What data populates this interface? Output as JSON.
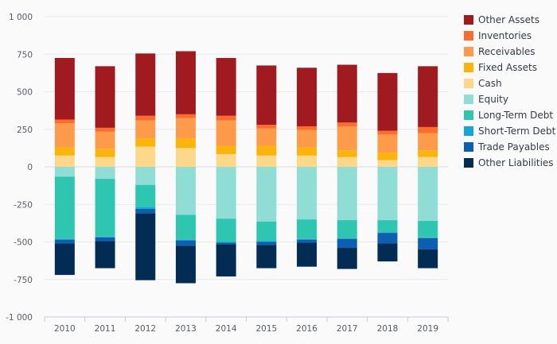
{
  "chart_data": {
    "type": "bar",
    "stacked": true,
    "categories": [
      "2010",
      "2011",
      "2012",
      "2013",
      "2014",
      "2015",
      "2016",
      "2017",
      "2018",
      "2019"
    ],
    "ylim": [
      -1000,
      1000
    ],
    "yticks": [
      1000,
      750,
      500,
      250,
      0,
      -250,
      -500,
      -750,
      -1000
    ],
    "ytick_labels": [
      "1 000",
      "750",
      "500",
      "250",
      "0",
      "-250",
      "-500",
      "-750",
      "-1 000"
    ],
    "grid": true,
    "legend_position": "right",
    "positive_series": [
      {
        "name": "Cash",
        "color": "#fdd78a",
        "values": [
          75,
          65,
          135,
          125,
          85,
          75,
          75,
          65,
          45,
          65
        ]
      },
      {
        "name": "Fixed Assets",
        "color": "#fbb40c",
        "values": [
          55,
          55,
          55,
          65,
          55,
          65,
          55,
          45,
          50,
          45
        ]
      },
      {
        "name": "Receivables",
        "color": "#fd9b4a",
        "values": [
          160,
          115,
          120,
          135,
          170,
          115,
          115,
          160,
          120,
          115
        ]
      },
      {
        "name": "Inventories",
        "color": "#fc6c2c",
        "values": [
          25,
          25,
          30,
          25,
          30,
          25,
          25,
          25,
          25,
          40
        ]
      },
      {
        "name": "Other Assets",
        "color": "#a01a20",
        "values": [
          410,
          410,
          415,
          420,
          385,
          395,
          390,
          385,
          385,
          405
        ]
      }
    ],
    "negative_series": [
      {
        "name": "Equity",
        "color": "#8fddd4",
        "values": [
          -65,
          -80,
          -120,
          -320,
          -345,
          -365,
          -350,
          -355,
          -355,
          -360
        ]
      },
      {
        "name": "Long-Term Debt",
        "color": "#2fc6b1",
        "values": [
          -415,
          -385,
          -150,
          -165,
          -155,
          -130,
          -130,
          -120,
          -80,
          -110
        ]
      },
      {
        "name": "Short-Term Debt",
        "color": "#15a6d4",
        "values": [
          -5,
          -5,
          -10,
          -5,
          -5,
          -5,
          -5,
          -5,
          -5,
          -5
        ]
      },
      {
        "name": "Trade Payables",
        "color": "#0e5eb1",
        "values": [
          -25,
          -25,
          -30,
          -35,
          -10,
          -20,
          -20,
          -60,
          -70,
          -75
        ]
      },
      {
        "name": "Other Liabilities",
        "color": "#032c54",
        "values": [
          -210,
          -180,
          -445,
          -250,
          -215,
          -155,
          -160,
          -140,
          -120,
          -125
        ]
      }
    ],
    "legend": [
      {
        "name": "Other Assets",
        "color": "#a01a20"
      },
      {
        "name": "Inventories",
        "color": "#fc6c2c"
      },
      {
        "name": "Receivables",
        "color": "#fd9b4a"
      },
      {
        "name": "Fixed Assets",
        "color": "#fbb40c"
      },
      {
        "name": "Cash",
        "color": "#fdd78a"
      },
      {
        "name": "Equity",
        "color": "#8fddd4"
      },
      {
        "name": "Long-Term Debt",
        "color": "#2fc6b1"
      },
      {
        "name": "Short-Term Debt",
        "color": "#15a6d4"
      },
      {
        "name": "Trade Payables",
        "color": "#0e5eb1"
      },
      {
        "name": "Other Liabilities",
        "color": "#032c54"
      }
    ]
  }
}
